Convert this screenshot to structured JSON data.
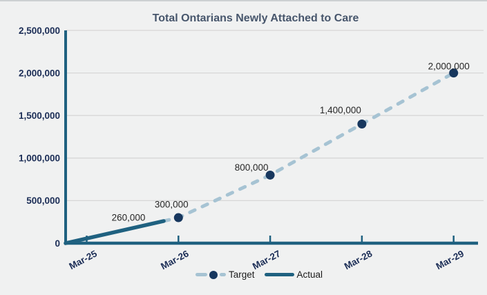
{
  "chart_data": {
    "type": "line",
    "title": "Total Ontarians Newly Attached to Care",
    "categories": [
      "Mar-25",
      "Mar-26",
      "Mar-27",
      "Mar-28",
      "Mar-29"
    ],
    "xlabel": "",
    "ylabel": "",
    "ylim": [
      0,
      2500000
    ],
    "y_tick_step": 500000,
    "y_tick_labels": [
      "0",
      "500,000",
      "1,000,000",
      "1,500,000",
      "2,000,000",
      "2,500,000"
    ],
    "grid": true,
    "legend_position": "bottom-center",
    "series": [
      {
        "name": "Target",
        "style": "dashed-line-with-markers",
        "line_color": "#A6C3D3",
        "marker_color": "#17375E",
        "points": [
          {
            "x": 0.84,
            "value": 260000,
            "marker": false,
            "label": ""
          },
          {
            "x": 1,
            "value": 300000,
            "marker": true,
            "label": "300,000",
            "label_dx": -10,
            "label_dy": -19
          },
          {
            "x": 2,
            "value": 800000,
            "marker": true,
            "label": "800,000",
            "label_dx": -27,
            "label_dy": -11
          },
          {
            "x": 3,
            "value": 1400000,
            "marker": true,
            "label": "1,400,000",
            "label_dx": -31,
            "label_dy": -20
          },
          {
            "x": 4,
            "value": 2000000,
            "marker": true,
            "label": "2,000,000",
            "label_dx": -7,
            "label_dy": -10
          }
        ]
      },
      {
        "name": "Actual",
        "style": "solid-line",
        "line_color": "#1F6180",
        "points": [
          {
            "x": -0.23,
            "value": 0,
            "marker": false,
            "label": ""
          },
          {
            "x": 0.84,
            "value": 260000,
            "marker": false,
            "label": "260,000",
            "label_dx": -51,
            "label_dy": -5
          }
        ]
      }
    ]
  },
  "legend": {
    "items": [
      {
        "label": "Target"
      },
      {
        "label": "Actual"
      }
    ]
  },
  "colors": {
    "background": "#F0F1F1",
    "title": "#47566C",
    "axis": "#1F6180",
    "gridline": "#D7D7D7",
    "tick_label": "#1B2D56",
    "data_label": "#262626",
    "target_dash": "#A6C3D3",
    "marker": "#17375E",
    "legend_text": "#1A1A1A"
  }
}
